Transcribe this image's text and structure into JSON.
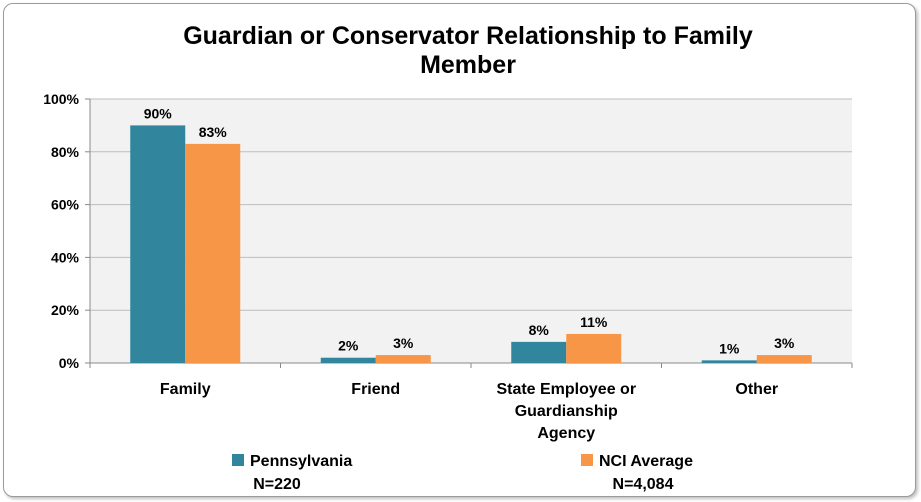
{
  "chart_data": {
    "type": "bar",
    "title_lines": [
      "Guardian or Conservator Relationship to Family",
      "Member"
    ],
    "categories": [
      [
        "Family"
      ],
      [
        "Friend"
      ],
      [
        "State Employee or",
        "Guardianship",
        "Agency"
      ],
      [
        "Other"
      ]
    ],
    "ylim": [
      0,
      100
    ],
    "yticks": [
      0,
      20,
      40,
      60,
      80,
      100
    ],
    "ytick_labels": [
      "0%",
      "20%",
      "40%",
      "60%",
      "80%",
      "100%"
    ],
    "grid": true,
    "legend_position": "bottom",
    "series": [
      {
        "name": "Pennsylvania",
        "sublabel": "N=220",
        "color": "#31859c",
        "values": [
          90,
          2,
          8,
          1
        ],
        "labels": [
          "90%",
          "2%",
          "8%",
          "1%"
        ]
      },
      {
        "name": "NCI Average",
        "sublabel": "N=4,084",
        "color": "#f79646",
        "values": [
          83,
          3,
          11,
          3
        ],
        "labels": [
          "83%",
          "3%",
          "11%",
          "3%"
        ]
      }
    ]
  }
}
